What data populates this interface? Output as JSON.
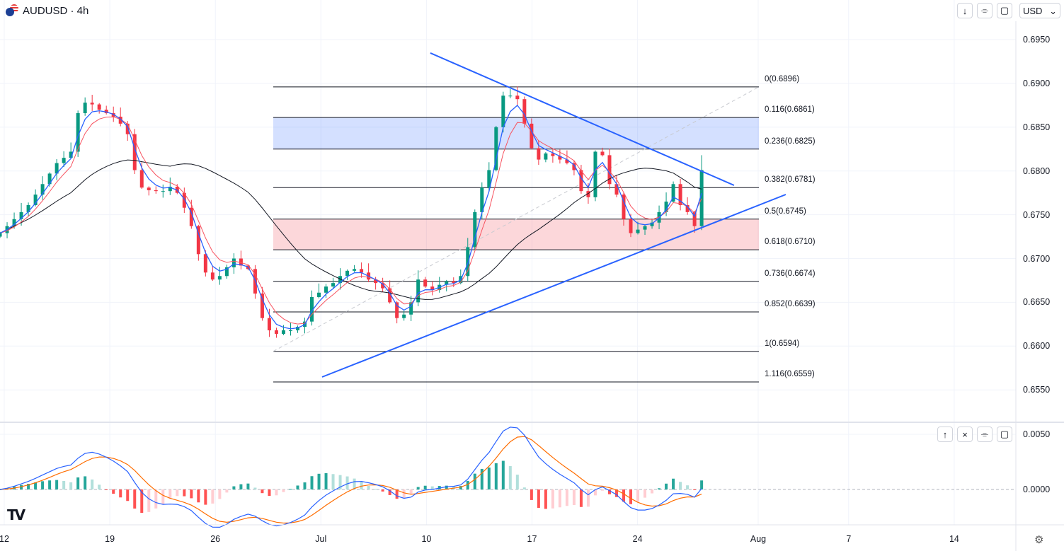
{
  "header": {
    "symbol": "AUDUSD · 4h",
    "currency": "USD"
  },
  "colors": {
    "up": "#089981",
    "down": "#f23645",
    "ema_fast": "#2962ff",
    "ema_slow": "#f7525f",
    "sma": "#131722",
    "trendline": "#2962ff",
    "macd": "#2962ff",
    "signal": "#ff6d00",
    "fib_zone_blue": "#2962ff",
    "fib_zone_red": "#f23645"
  },
  "icons": {
    "move_down": "↓",
    "move_up": "↑",
    "remove": "×",
    "collapse": "⌯",
    "maximize": "▢",
    "settings": "⚙",
    "logo": "TV"
  },
  "chart_data": {
    "type": "candlestick",
    "title": "AUDUSD · 4h",
    "first_day": -0.28,
    "step_days": 0.47,
    "closes": [
      0.6729,
      0.6737,
      0.6745,
      0.6753,
      0.6761,
      0.6773,
      0.6785,
      0.6797,
      0.6809,
      0.6815,
      0.6822,
      0.6866,
      0.6878,
      0.6876,
      0.687,
      0.6866,
      0.6862,
      0.6854,
      0.6842,
      0.6801,
      0.6781,
      0.6778,
      0.6777,
      0.6777,
      0.6782,
      0.6775,
      0.6758,
      0.6737,
      0.6705,
      0.6684,
      0.6676,
      0.668,
      0.669,
      0.67,
      0.6692,
      0.6688,
      0.666,
      0.6632,
      0.6618,
      0.6614,
      0.6618,
      0.6618,
      0.6622,
      0.6628,
      0.6656,
      0.6661,
      0.6668,
      0.6672,
      0.668,
      0.6686,
      0.6688,
      0.6684,
      0.6676,
      0.6672,
      0.6666,
      0.665,
      0.6632,
      0.6636,
      0.665,
      0.6676,
      0.6668,
      0.6664,
      0.667,
      0.6674,
      0.6672,
      0.668,
      0.6713,
      0.6753,
      0.6781,
      0.6801,
      0.685,
      0.6886,
      0.6886,
      0.6882,
      0.6854,
      0.6826,
      0.6813,
      0.682,
      0.6817,
      0.6813,
      0.6809,
      0.6801,
      0.6777,
      0.677,
      0.6822,
      0.6818,
      0.6785,
      0.6773,
      0.6745,
      0.6729,
      0.6733,
      0.6737,
      0.6741,
      0.6753,
      0.6765,
      0.6785,
      0.6761,
      0.6753,
      0.6737,
      0.6801
    ],
    "last_high": 0.6818,
    "yticks": [
      "0.6950",
      "0.6900",
      "0.6850",
      "0.6800",
      "0.6750",
      "0.6700",
      "0.6650",
      "0.6600",
      "0.6550"
    ],
    "ylim": [
      0.6525,
      0.6985
    ],
    "xticks": [
      {
        "day": 0,
        "label": "12"
      },
      {
        "day": 7,
        "label": "19"
      },
      {
        "day": 14,
        "label": "26"
      },
      {
        "day": 21,
        "label": "Jul"
      },
      {
        "day": 28,
        "label": "10"
      },
      {
        "day": 35,
        "label": "17"
      },
      {
        "day": 42,
        "label": "24"
      },
      {
        "day": 50,
        "label": "Aug"
      },
      {
        "day": 56,
        "label": "7"
      },
      {
        "day": 63,
        "label": "14"
      }
    ],
    "fibonacci": [
      {
        "price": 0.6896,
        "label": "0(0.6896)"
      },
      {
        "price": 0.6861,
        "label": "0.116(0.6861)"
      },
      {
        "price": 0.6825,
        "label": "0.236(0.6825)"
      },
      {
        "price": 0.6781,
        "label": "0.382(0.6781)"
      },
      {
        "price": 0.6745,
        "label": "0.5(0.6745)"
      },
      {
        "price": 0.671,
        "label": "0.618(0.6710)"
      },
      {
        "price": 0.6674,
        "label": "0.736(0.6674)"
      },
      {
        "price": 0.6639,
        "label": "0.852(0.6639)"
      },
      {
        "price": 0.6594,
        "label": "1(0.6594)"
      },
      {
        "price": 0.6559,
        "label": "1.116(0.6559)"
      }
    ],
    "fib_range_days": [
      17.84,
      50.05
    ],
    "fib_diagonal": [
      [
        17.84,
        0.6594
      ],
      [
        50.05,
        0.6896
      ]
    ],
    "trendlines": [
      {
        "name": "upper-trendline",
        "points": [
          [
            28.26,
            0.69347
          ],
          [
            48.4,
            0.67836
          ]
        ]
      },
      {
        "name": "lower-trendline",
        "points": [
          [
            21.08,
            0.65647
          ],
          [
            51.83,
            0.67731
          ]
        ]
      }
    ],
    "indicators": {
      "ema_fast": 3,
      "ema_slow": 5,
      "sma": 25
    },
    "macd": {
      "fast": 6,
      "slow": 13,
      "signal": 5,
      "yticks": [
        "0.0050",
        "0.0000"
      ],
      "ylim": [
        -0.0033,
        0.0058
      ]
    }
  }
}
